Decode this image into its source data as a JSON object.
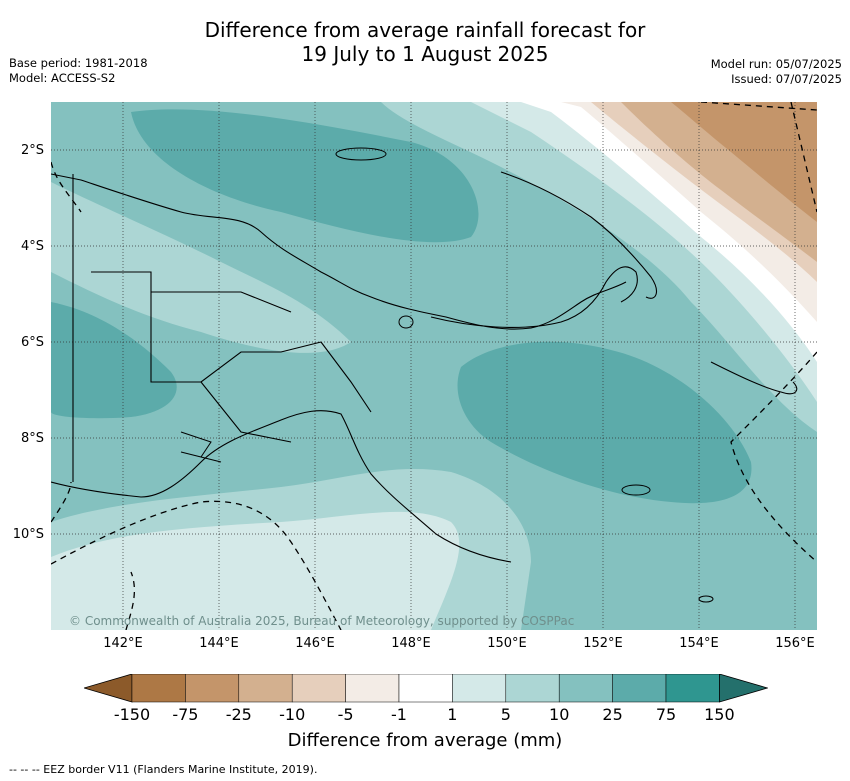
{
  "title_line1": "Difference from average rainfall forecast for",
  "title_line2": "19 July to 1 August 2025",
  "base_period": "Base period: 1981-2018",
  "model": "Model: ACCESS-S2",
  "model_run": "Model run: 05/07/2025",
  "issued": "Issued: 07/07/2025",
  "copyright": "© Commonwealth of Australia 2025, Bureau of Meteorology, supported by COSPPac",
  "lat_labels": [
    "2°S",
    "4°S",
    "6°S",
    "8°S",
    "10°S"
  ],
  "lon_labels": [
    "142°E",
    "144°E",
    "146°E",
    "148°E",
    "150°E",
    "152°E",
    "154°E",
    "156°E"
  ],
  "colorbar": {
    "ticks": [
      "-150",
      "-75",
      "-25",
      "-10",
      "-5",
      "-1",
      "1",
      "5",
      "10",
      "25",
      "75",
      "150"
    ],
    "colors": [
      "#8c5a2a",
      "#ad7845",
      "#c4956a",
      "#d3b08f",
      "#e6cfbc",
      "#f3ece6",
      "#ffffff",
      "#d4e9e8",
      "#acd6d4",
      "#84c1bf",
      "#5cabaa",
      "#2f9690",
      "#24706c"
    ],
    "label": "Difference from average (mm)"
  },
  "legend_eez": "--  --  -- EEZ border V11 (Flanders Marine Institute, 2019)."
}
